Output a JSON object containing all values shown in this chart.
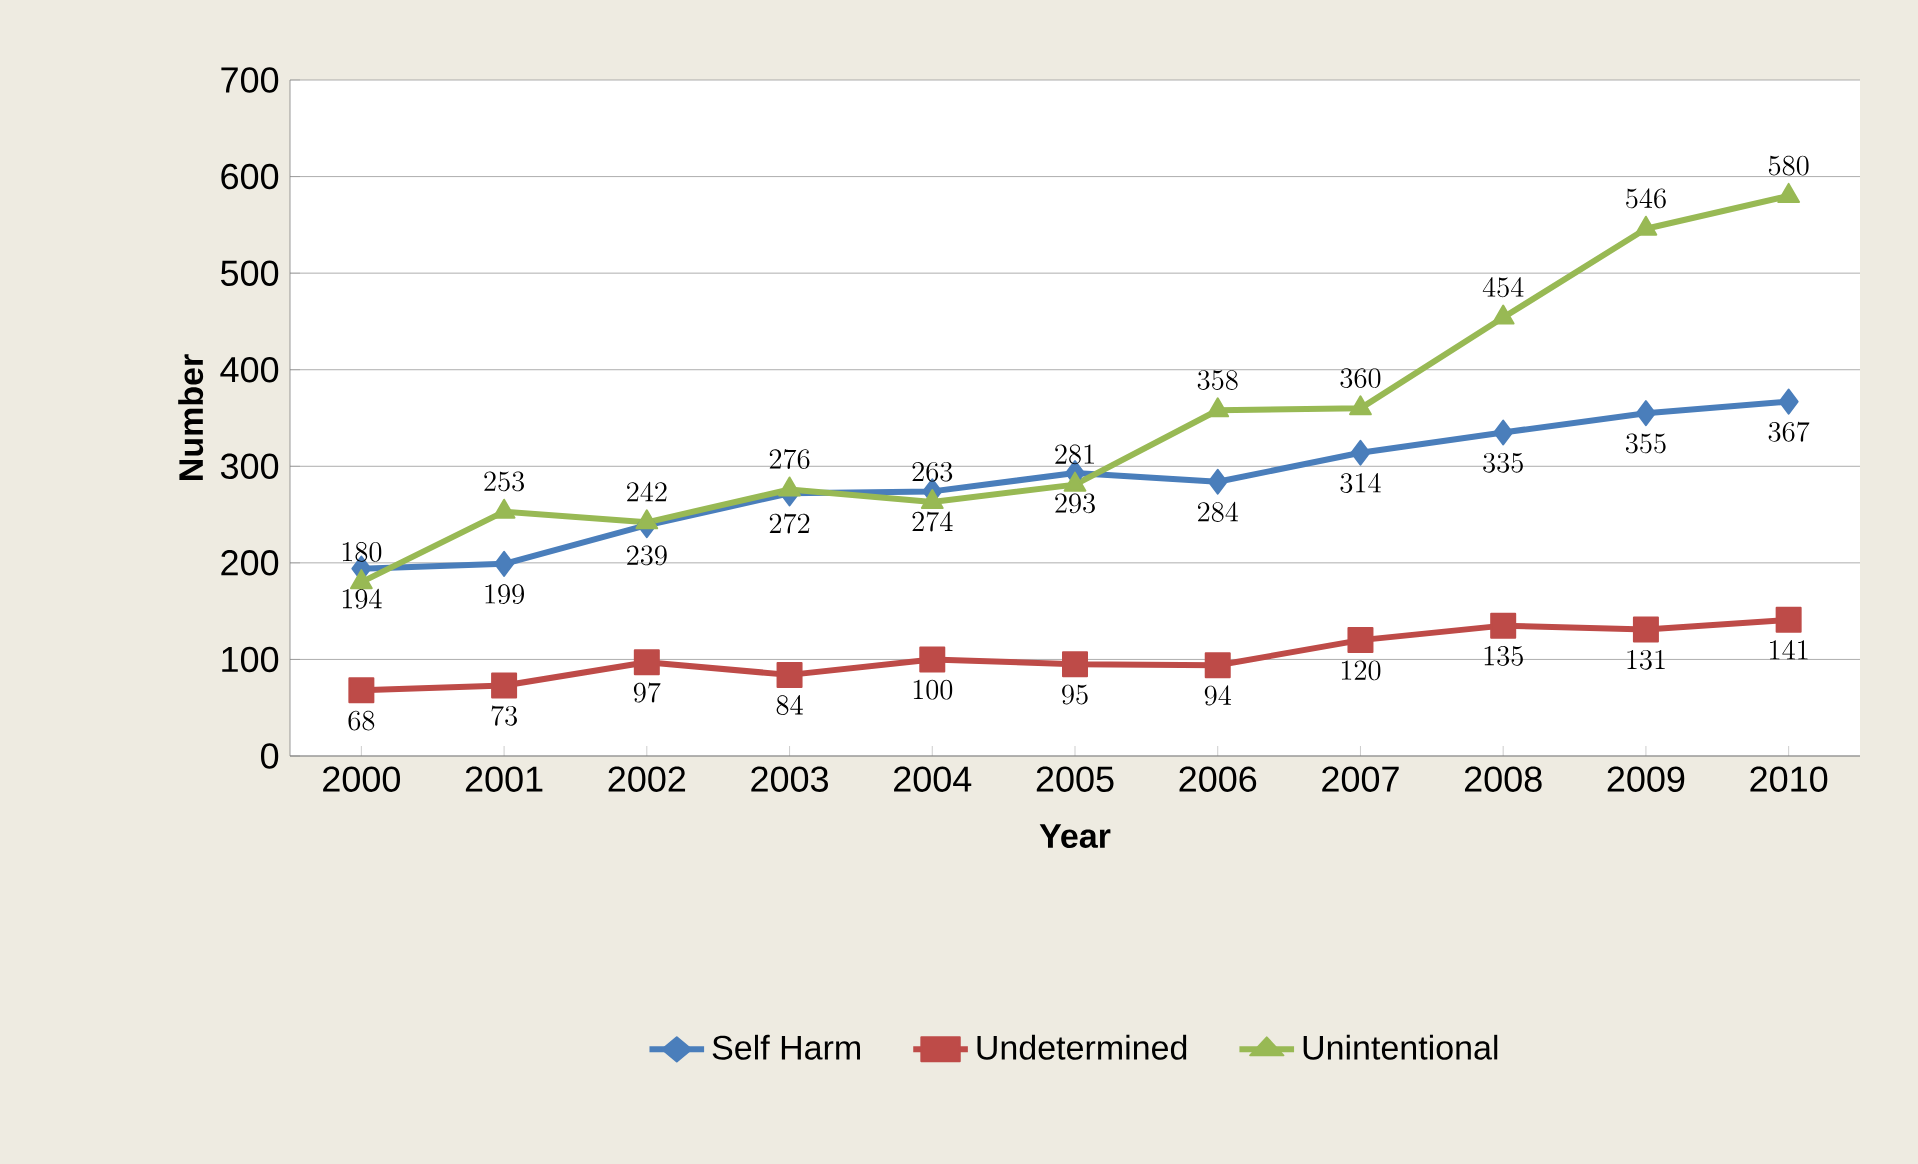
{
  "chart_data": {
    "type": "line",
    "xlabel": "Year",
    "ylabel": "Number",
    "categories": [
      "2000",
      "2001",
      "2002",
      "2003",
      "2004",
      "2005",
      "2006",
      "2007",
      "2008",
      "2009",
      "2010"
    ],
    "series": [
      {
        "name": "Self Harm",
        "color": "#4a7ebb",
        "marker": "diamond",
        "values": [
          194,
          199,
          239,
          272,
          274,
          293,
          284,
          314,
          335,
          355,
          367
        ]
      },
      {
        "name": "Undetermined",
        "color": "#be4b48",
        "marker": "square",
        "values": [
          68,
          73,
          97,
          84,
          100,
          95,
          94,
          120,
          135,
          131,
          141
        ]
      },
      {
        "name": "Unintentional",
        "color": "#98b954",
        "marker": "triangle",
        "values": [
          180,
          253,
          242,
          276,
          263,
          281,
          358,
          360,
          454,
          546,
          580
        ]
      }
    ],
    "ylim": [
      0,
      700
    ],
    "yticks": [
      0,
      100,
      200,
      300,
      400,
      500,
      600,
      700
    ],
    "grid": "y",
    "legend": "bottom",
    "data_labels": true,
    "line_style": "solid"
  }
}
